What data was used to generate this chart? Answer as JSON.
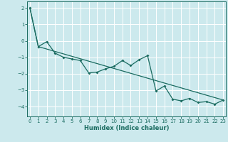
{
  "xlabel": "Humidex (Indice chaleur)",
  "bg_color": "#cce9ed",
  "grid_color": "#ffffff",
  "line_color": "#1a6b60",
  "x_ticks": [
    0,
    1,
    2,
    3,
    4,
    5,
    6,
    7,
    8,
    9,
    10,
    11,
    12,
    13,
    14,
    15,
    16,
    17,
    18,
    19,
    20,
    21,
    22,
    23
  ],
  "y_ticks": [
    -4,
    -3,
    -2,
    -1,
    0,
    1,
    2
  ],
  "xlim": [
    -0.3,
    23.3
  ],
  "ylim": [
    -4.6,
    2.4
  ],
  "line1_x": [
    0,
    1,
    2,
    3,
    4,
    5,
    6,
    7,
    8,
    9,
    10,
    11,
    12,
    13,
    14,
    15,
    16,
    17,
    18,
    19,
    20,
    21,
    22,
    23
  ],
  "line1_y": [
    2.0,
    -0.35,
    -0.05,
    -0.75,
    -1.0,
    -1.1,
    -1.2,
    -1.95,
    -1.9,
    -1.7,
    -1.55,
    -1.2,
    -1.5,
    -1.15,
    -0.9,
    -3.05,
    -2.75,
    -3.55,
    -3.65,
    -3.5,
    -3.75,
    -3.7,
    -3.85,
    -3.6
  ],
  "line2_x": [
    0,
    1,
    23
  ],
  "line2_y": [
    2.0,
    -0.35,
    -3.6
  ]
}
